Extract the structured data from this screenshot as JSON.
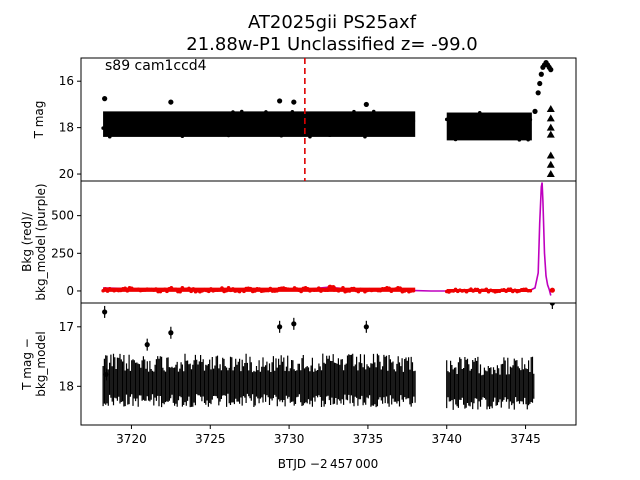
{
  "chart_data": {
    "type": "scatter",
    "title_line1": "AT2025gii  PS25axf",
    "title_line2": "21.88w-P1 Unclassified z= -99.0",
    "annotation": "s89 cam1ccd4",
    "xlabel": "BTJD −2 457 000",
    "xlim": [
      3716.8,
      3748.2
    ],
    "xticks": [
      3720,
      3725,
      3730,
      3735,
      3740,
      3745
    ],
    "xtick_labels": [
      "3720",
      "3725",
      "3730",
      "3735",
      "3740",
      "3745"
    ],
    "marker_line_x": 3731.0,
    "panels": [
      {
        "ylabel": "T mag",
        "ylim": [
          15,
          20.3
        ],
        "inverted": true,
        "yticks": [
          16,
          18,
          20
        ],
        "ytick_labels": [
          "16",
          "18",
          "20"
        ],
        "series": [
          {
            "style": "points",
            "color": "#000000",
            "segments": [
              {
                "x0": 3718.2,
                "x1": 3738.0,
                "y": 17.85,
                "spread": 0.55
              },
              {
                "x0": 3740.0,
                "x1": 3745.4,
                "y": 17.95,
                "spread": 0.6
              }
            ],
            "points": [
              [
                3718.3,
                16.75
              ],
              [
                3722.5,
                16.9
              ],
              [
                3729.4,
                16.85
              ],
              [
                3730.3,
                16.9
              ],
              [
                3734.9,
                17.0
              ],
              [
                3745.6,
                17.3
              ],
              [
                3745.8,
                16.5
              ],
              [
                3745.9,
                16.1
              ],
              [
                3746.0,
                15.7
              ],
              [
                3746.1,
                15.4
              ],
              [
                3746.2,
                15.3
              ],
              [
                3746.3,
                15.2
              ],
              [
                3746.4,
                15.3
              ],
              [
                3746.5,
                15.4
              ],
              [
                3746.6,
                15.5
              ]
            ]
          },
          {
            "style": "triangles",
            "color": "#000000",
            "points": [
              [
                3746.6,
                17.2
              ],
              [
                3746.6,
                17.6
              ],
              [
                3746.6,
                18.0
              ],
              [
                3746.6,
                18.3
              ],
              [
                3746.6,
                19.2
              ],
              [
                3746.6,
                19.6
              ],
              [
                3746.6,
                20.0
              ]
            ]
          }
        ]
      },
      {
        "ylabel": "Bkg (red)/ bkg_model (purple)",
        "ylabel_line1": "Bkg (red)/",
        "ylabel_line2": "bkg_model (purple)",
        "ylim": [
          -80,
          730
        ],
        "yticks": [
          0,
          250,
          500
        ],
        "ytick_labels": [
          "0",
          "250",
          "500"
        ],
        "series": [
          {
            "name": "bkg_model",
            "style": "line",
            "color": "#bf00bf",
            "points": [
              [
                3718.2,
                20
              ],
              [
                3720,
                15
              ],
              [
                3722,
                10
              ],
              [
                3725,
                8
              ],
              [
                3728,
                7
              ],
              [
                3731,
                10
              ],
              [
                3732.5,
                25
              ],
              [
                3734,
                10
              ],
              [
                3736,
                8
              ],
              [
                3738,
                2
              ],
              [
                3739,
                0
              ],
              [
                3740,
                0
              ],
              [
                3742,
                0
              ],
              [
                3744,
                0
              ],
              [
                3745.3,
                5
              ],
              [
                3745.6,
                20
              ],
              [
                3745.8,
                120
              ],
              [
                3745.9,
                450
              ],
              [
                3746.0,
                690
              ],
              [
                3746.05,
                720
              ],
              [
                3746.1,
                600
              ],
              [
                3746.2,
                250
              ],
              [
                3746.3,
                100
              ],
              [
                3746.4,
                40
              ],
              [
                3746.5,
                10
              ],
              [
                3746.6,
                -30
              ]
            ]
          },
          {
            "name": "bkg",
            "style": "points",
            "color": "#ee0000",
            "segments": [
              {
                "x0": 3718.2,
                "x1": 3738.0,
                "y": 8,
                "spread": 14
              },
              {
                "x0": 3740.0,
                "x1": 3745.4,
                "y": 3,
                "spread": 10
              }
            ],
            "points": [
              [
                3732.6,
                25
              ],
              [
                3732.8,
                22
              ],
              [
                3746.7,
                5
              ]
            ]
          }
        ]
      },
      {
        "ylabel": "T mag − bkg_model",
        "ylabel_line1": "T mag −",
        "ylabel_line2": "bkg_model",
        "ylim": [
          16.6,
          18.65
        ],
        "inverted": true,
        "yticks": [
          17,
          18
        ],
        "ytick_labels": [
          "17",
          "18"
        ],
        "series": [
          {
            "style": "errorbars",
            "color": "#000000",
            "segments": [
              {
                "x0": 3718.2,
                "x1": 3738.0,
                "y": 17.9,
                "spread": 0.45
              },
              {
                "x0": 3740.0,
                "x1": 3745.6,
                "y": 17.95,
                "spread": 0.45
              }
            ],
            "points": [
              [
                3718.3,
                16.75
              ],
              [
                3718.4,
                17.8
              ],
              [
                3721.0,
                17.3
              ],
              [
                3722.5,
                17.1
              ],
              [
                3729.4,
                17.0
              ],
              [
                3730.3,
                16.95
              ],
              [
                3734.9,
                17.0
              ],
              [
                3746.7,
                16.6
              ]
            ]
          }
        ]
      }
    ]
  }
}
